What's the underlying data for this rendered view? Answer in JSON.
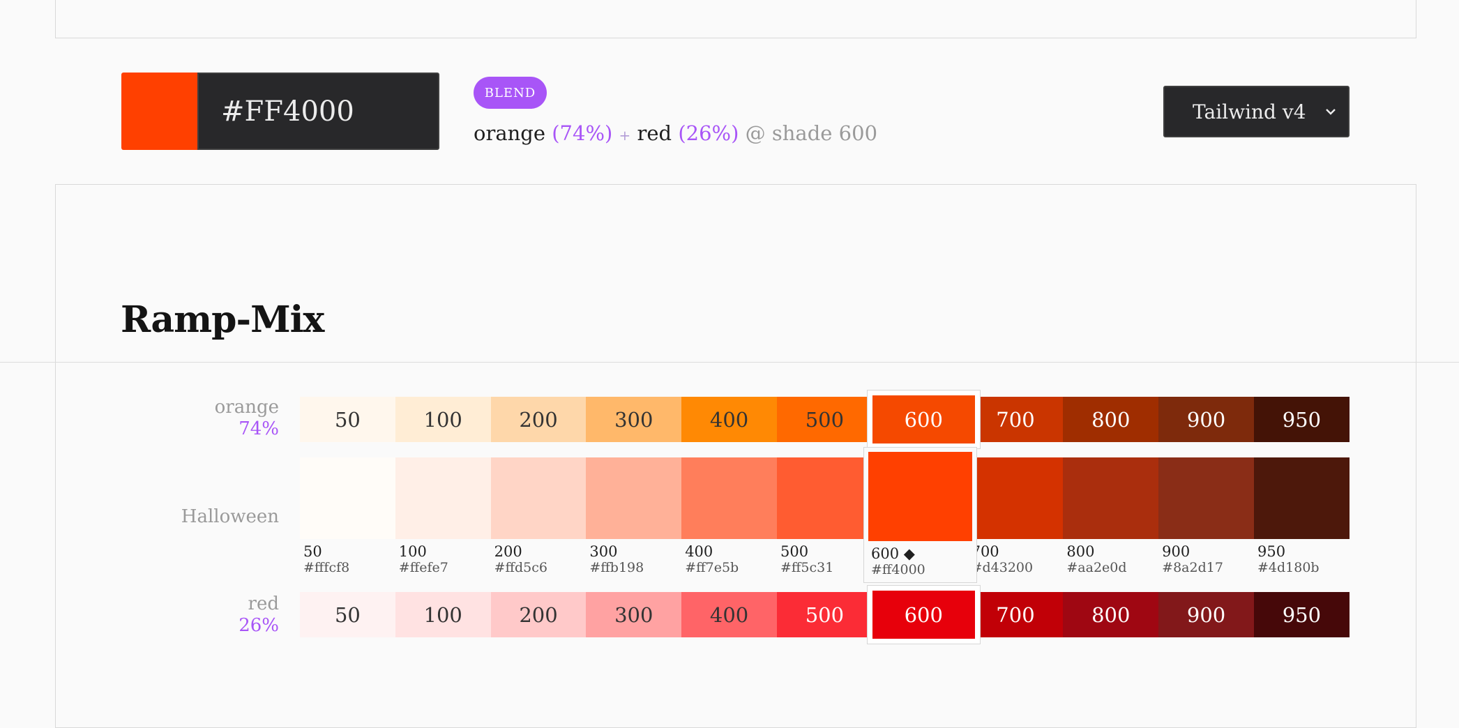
{
  "current": {
    "color": "#FF4000",
    "hex_value": "#FF4000"
  },
  "badge": {
    "label": "BLEND",
    "color": "#a855f7"
  },
  "formula": {
    "color_a": "orange",
    "pct_a": "(74%)",
    "plus": "+",
    "color_b": "red",
    "pct_b": "(26%)",
    "at_shade": "@ shade",
    "shade": "600"
  },
  "palette_select": {
    "selected": "Tailwind v4"
  },
  "section": {
    "title": "Ramp-Mix"
  },
  "orange_row": {
    "name": "orange",
    "percent": "74%",
    "shades": [
      {
        "label": "50",
        "color": "#fff7ed",
        "text": "#333333"
      },
      {
        "label": "100",
        "color": "#ffedd5",
        "text": "#333333"
      },
      {
        "label": "200",
        "color": "#fed7aa",
        "text": "#333333"
      },
      {
        "label": "300",
        "color": "#ffb86a",
        "text": "#333333"
      },
      {
        "label": "400",
        "color": "#ff8904",
        "text": "#333333"
      },
      {
        "label": "500",
        "color": "#ff6900",
        "text": "#333333"
      },
      {
        "label": "600",
        "color": "#f54900",
        "text": "#ffffff"
      },
      {
        "label": "700",
        "color": "#ca3500",
        "text": "#ffffff"
      },
      {
        "label": "800",
        "color": "#9f2d00",
        "text": "#ffffff"
      },
      {
        "label": "900",
        "color": "#7e2a0c",
        "text": "#ffffff"
      },
      {
        "label": "950",
        "color": "#441306",
        "text": "#ffffff"
      }
    ]
  },
  "halloween_row": {
    "name": "Halloween",
    "shades": [
      {
        "label": "50",
        "hex": "#fffcf8",
        "color": "#fffcf8"
      },
      {
        "label": "100",
        "hex": "#ffefe7",
        "color": "#ffefe7"
      },
      {
        "label": "200",
        "hex": "#ffd5c6",
        "color": "#ffd5c6"
      },
      {
        "label": "300",
        "hex": "#ffb198",
        "color": "#ffb198"
      },
      {
        "label": "400",
        "hex": "#ff7e5b",
        "color": "#ff7e5b"
      },
      {
        "label": "500",
        "hex": "#ff5c31",
        "color": "#ff5c31"
      },
      {
        "label": "600",
        "hex": "#ff4000",
        "color": "#ff4000",
        "marker": "◆"
      },
      {
        "label": "700",
        "hex": "#d43200",
        "color": "#d43200"
      },
      {
        "label": "800",
        "hex": "#aa2e0d",
        "color": "#aa2e0d"
      },
      {
        "label": "900",
        "hex": "#8a2d17",
        "color": "#8a2d17"
      },
      {
        "label": "950",
        "hex": "#4d180b",
        "color": "#4d180b"
      }
    ]
  },
  "red_row": {
    "name": "red",
    "percent": "26%",
    "shades": [
      {
        "label": "50",
        "color": "#fef2f2",
        "text": "#333333"
      },
      {
        "label": "100",
        "color": "#ffe2e2",
        "text": "#333333"
      },
      {
        "label": "200",
        "color": "#ffc9c9",
        "text": "#333333"
      },
      {
        "label": "300",
        "color": "#ffa2a2",
        "text": "#333333"
      },
      {
        "label": "400",
        "color": "#ff6467",
        "text": "#333333"
      },
      {
        "label": "500",
        "color": "#fb2c36",
        "text": "#ffffff"
      },
      {
        "label": "600",
        "color": "#e7000b",
        "text": "#ffffff"
      },
      {
        "label": "700",
        "color": "#c10007",
        "text": "#ffffff"
      },
      {
        "label": "800",
        "color": "#9f0712",
        "text": "#ffffff"
      },
      {
        "label": "900",
        "color": "#82181a",
        "text": "#ffffff"
      },
      {
        "label": "950",
        "color": "#460809",
        "text": "#ffffff"
      }
    ]
  }
}
